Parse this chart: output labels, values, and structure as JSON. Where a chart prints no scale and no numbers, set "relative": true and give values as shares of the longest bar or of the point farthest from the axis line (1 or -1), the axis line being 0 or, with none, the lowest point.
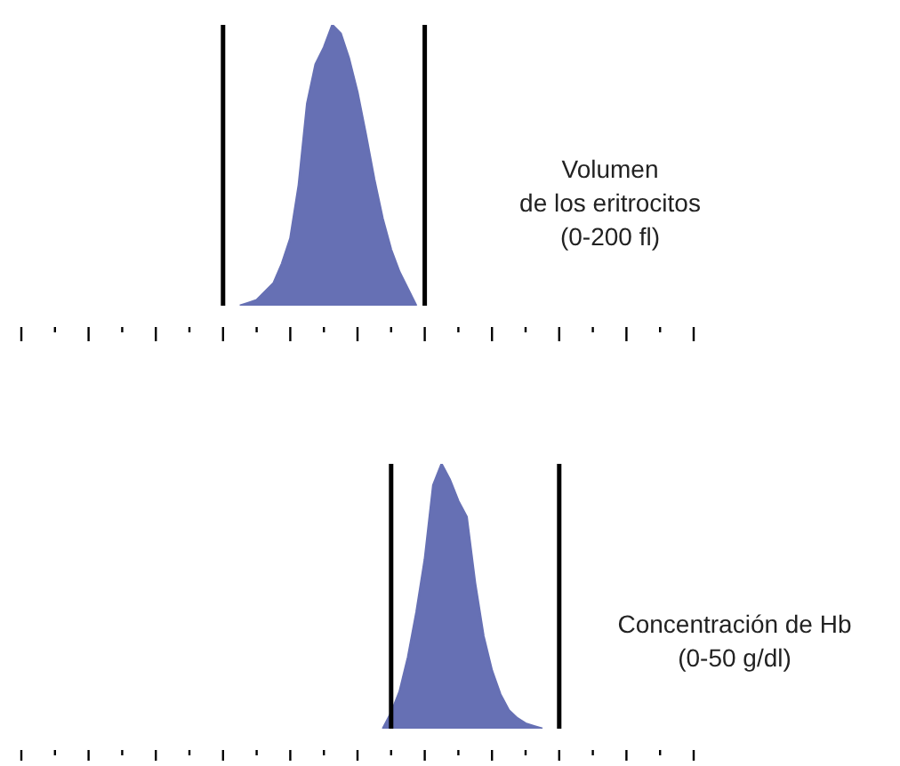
{
  "chart_data": [
    {
      "type": "area",
      "xlabel": "Volumen\nde los eritrocitos\n(0-200 fl)",
      "relative": true,
      "categories": [
        null,
        null,
        null,
        null,
        null,
        null,
        null,
        null,
        null,
        null,
        null,
        null,
        null,
        null,
        null,
        null,
        null,
        null,
        null,
        null,
        null,
        null,
        null,
        null,
        null,
        null,
        null,
        null,
        null,
        null,
        null,
        null,
        null,
        null,
        null,
        null,
        null,
        null,
        null,
        null,
        null,
        null,
        null,
        null,
        null,
        null,
        null,
        null,
        null,
        null,
        null,
        null,
        null,
        null,
        null,
        null,
        null,
        null,
        null,
        null,
        null,
        null,
        null,
        null,
        null,
        null,
        null,
        null,
        null,
        null,
        null,
        null,
        null,
        null,
        null,
        null,
        null,
        null,
        null,
        null,
        null
      ],
      "series": [
        {
          "color": "#6670b4",
          "values": [
            null,
            null,
            null,
            null,
            null,
            null,
            null,
            null,
            null,
            null,
            null,
            null,
            null,
            null,
            null,
            null,
            null,
            null,
            null,
            null,
            null,
            null,
            null,
            null,
            null,
            null,
            0,
            0.01,
            0.02,
            0.05,
            0.08,
            0.15,
            0.24,
            0.43,
            0.72,
            0.86,
            0.92,
            1,
            0.97,
            0.88,
            0.76,
            0.61,
            0.45,
            0.31,
            0.2,
            0.12,
            0.06,
            0,
            null,
            null,
            null,
            null,
            null,
            null,
            null,
            null,
            null,
            null,
            null,
            null,
            null,
            null,
            null,
            null,
            null,
            null,
            null,
            null,
            null,
            null,
            null,
            null,
            null,
            null,
            null,
            null,
            null,
            null,
            null,
            null,
            null
          ]
        }
      ],
      "grid": false,
      "legend": false
    },
    {
      "type": "area",
      "xlabel": "Concentración de Hb\n(0-50 g/dl)",
      "relative": true,
      "categories": [
        null,
        null,
        null,
        null,
        null,
        null,
        null,
        null,
        null,
        null,
        null,
        null,
        null,
        null,
        null,
        null,
        null,
        null,
        null,
        null,
        null,
        null,
        null,
        null,
        null,
        null,
        null,
        null,
        null,
        null,
        null,
        null,
        null,
        null,
        null,
        null,
        null,
        null,
        null,
        null,
        null,
        null,
        null,
        null,
        null,
        null,
        null,
        null,
        null,
        null,
        null,
        null,
        null,
        null,
        null,
        null,
        null,
        null,
        null,
        null,
        null,
        null,
        null,
        null,
        null,
        null,
        null,
        null,
        null,
        null,
        null,
        null,
        null,
        null,
        null,
        null,
        null,
        null,
        null,
        null,
        null
      ],
      "series": [
        {
          "color": "#6670b4",
          "values": [
            null,
            null,
            null,
            null,
            null,
            null,
            null,
            null,
            null,
            null,
            null,
            null,
            null,
            null,
            null,
            null,
            null,
            null,
            null,
            null,
            null,
            null,
            null,
            null,
            null,
            null,
            null,
            null,
            null,
            null,
            null,
            null,
            null,
            null,
            null,
            null,
            null,
            null,
            null,
            null,
            null,
            null,
            null,
            0,
            0.06,
            0.14,
            0.27,
            0.44,
            0.64,
            0.92,
            1,
            0.94,
            0.86,
            0.8,
            0.55,
            0.35,
            0.22,
            0.13,
            0.07,
            0.04,
            0.02,
            0.01,
            0,
            null,
            null,
            null,
            null,
            null,
            null,
            null,
            null,
            null,
            null,
            null,
            null,
            null,
            null,
            null,
            null,
            null,
            null
          ]
        }
      ],
      "grid": false,
      "legend": false
    }
  ]
}
